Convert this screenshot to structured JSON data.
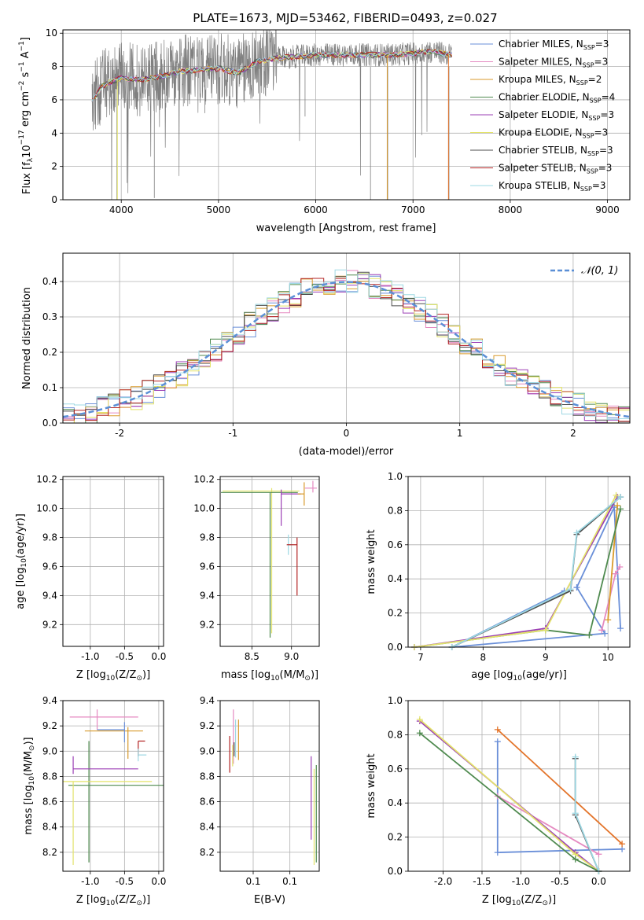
{
  "chart_data": [
    {
      "type": "line",
      "title": "PLATE=1673, MJD=53462, FIBERID=0493, z=0.027",
      "xlabel": "wavelength [Angstrom, rest frame]",
      "ylabel_parts": [
        "Flux [f",
        "λ",
        "10",
        "−17",
        " erg cm",
        "−2",
        " s",
        "−1",
        " A",
        "−1",
        "]"
      ],
      "xlim": [
        3400,
        9230
      ],
      "ylim": [
        0,
        10.2
      ],
      "xticks": [
        4000,
        5000,
        6000,
        7000,
        8000,
        9000
      ],
      "yticks": [
        0,
        2,
        4,
        6,
        8,
        10
      ],
      "legend_position": "right",
      "series": [
        {
          "label": "Chabrier MILES, N",
          "sub": "SSP",
          "count": "=3",
          "color": "#6a8fd8"
        },
        {
          "label": "Salpeter MILES, N",
          "sub": "SSP",
          "count": "=3",
          "color": "#e58ac1"
        },
        {
          "label": "Kroupa MILES, N",
          "sub": "SSP",
          "count": "=2",
          "color": "#d89a2b"
        },
        {
          "label": "Chabrier ELODIE, N",
          "sub": "SSP",
          "count": "=4",
          "color": "#4f8a4f"
        },
        {
          "label": "Salpeter ELODIE, N",
          "sub": "SSP",
          "count": "=3",
          "color": "#9b3fb5"
        },
        {
          "label": "Kroupa ELODIE, N",
          "sub": "SSP",
          "count": "=3",
          "color": "#e3e36a"
        },
        {
          "label": "Chabrier STELIB, N",
          "sub": "SSP",
          "count": "=3",
          "color": "#4d4d4d"
        },
        {
          "label": "Salpeter STELIB, N",
          "sub": "SSP",
          "count": "=3",
          "color": "#b22222"
        },
        {
          "label": "Kroupa STELIB, N",
          "sub": "SSP",
          "count": "=3",
          "color": "#9ed8e3"
        }
      ],
      "data_color": "#808080",
      "model_continuum": [
        [
          3700,
          5.9
        ],
        [
          3800,
          6.8
        ],
        [
          3900,
          7.1
        ],
        [
          4000,
          7.3
        ],
        [
          4200,
          7.2
        ],
        [
          4400,
          7.4
        ],
        [
          4600,
          7.7
        ],
        [
          4800,
          7.8
        ],
        [
          5000,
          7.9
        ],
        [
          5200,
          7.6
        ],
        [
          5400,
          8.3
        ],
        [
          5600,
          8.5
        ],
        [
          5800,
          8.6
        ],
        [
          6000,
          8.7
        ],
        [
          6200,
          8.7
        ],
        [
          6400,
          8.7
        ],
        [
          6600,
          8.7
        ],
        [
          6800,
          8.7
        ],
        [
          7000,
          8.8
        ],
        [
          7200,
          8.9
        ],
        [
          7400,
          8.7
        ]
      ]
    },
    {
      "type": "histogram",
      "xlabel": "(data-model)/error",
      "ylabel": "Normed distribution",
      "xlim": [
        -2.5,
        2.5
      ],
      "ylim": [
        0,
        0.48
      ],
      "xticks": [
        -2,
        -1,
        0,
        1,
        2
      ],
      "yticks": [
        0.0,
        0.1,
        0.2,
        0.3,
        0.4
      ],
      "legend": "𝒩(0, 1)",
      "legend_position": "top-right",
      "gaussian_color": "#5b8fd6"
    },
    {
      "type": "scatter",
      "xlabel_parts": [
        "Z [log",
        "10",
        "(Z/Z",
        "⊙",
        ")]"
      ],
      "ylabel_parts": [
        "age  [log",
        "10",
        "(age/yr)]"
      ],
      "xlim": [
        -1.4,
        0.07
      ],
      "ylim": [
        9.05,
        10.22
      ],
      "xticks": [
        -1.0,
        -0.5,
        0.0
      ],
      "yticks": [
        9.2,
        9.4,
        9.6,
        9.8,
        10.0,
        10.2
      ],
      "points": [
        {
          "x": -1.02,
          "y": 10.11,
          "xerr": [
            0.15,
            1.05
          ],
          "yerr": [
            1.0,
            0.0
          ],
          "color": "#4f8a4f"
        },
        {
          "x": -1.25,
          "y": 10.12,
          "xerr": [
            0.05,
            1.05
          ],
          "yerr": [
            0.98,
            0.02
          ],
          "color": "#e3e36a"
        },
        {
          "x": -0.48,
          "y": 10.14,
          "xerr": [
            0.75,
            0.27
          ],
          "yerr": [
            0.03,
            0.05
          ],
          "color": "#e58ac1"
        },
        {
          "x": -0.45,
          "y": 10.1,
          "xerr": [
            0.67,
            0.0
          ],
          "yerr": [
            0.05,
            0.05
          ],
          "color": "#d89a2b"
        },
        {
          "x": -0.45,
          "y": 10.1,
          "xerr": [
            0.55,
            0.1
          ],
          "yerr": [
            0.0,
            0.03
          ],
          "color": "#9b3fb5"
        },
        {
          "x": -0.33,
          "y": 9.75,
          "xerr": [
            0.0,
            0.08
          ],
          "yerr": [
            0.05,
            0.07
          ],
          "color": "#9ed8e3"
        },
        {
          "x": -0.31,
          "y": 9.78,
          "xerr": [
            0.0,
            0.0
          ],
          "yerr": [
            0.39,
            0.03
          ],
          "color": "#b22222"
        },
        {
          "x": -0.31,
          "y": 9.78,
          "xerr": [
            0.0,
            0.0
          ],
          "yerr": [
            0.08,
            0.04
          ],
          "color": "#4d4d4d"
        }
      ]
    },
    {
      "type": "scatter",
      "xlabel_parts": [
        "mass [log",
        "10",
        "(M/M",
        "⊙",
        ")]"
      ],
      "xlim": [
        8.1,
        9.35
      ],
      "ylim": [
        9.05,
        10.22
      ],
      "xticks": [
        8.5,
        9.0
      ],
      "yticks": [
        9.2,
        9.4,
        9.6,
        9.8,
        10.0,
        10.2
      ],
      "points": [
        {
          "x": 8.75,
          "y": 10.12,
          "xerr": [
            0.62,
            0.35
          ],
          "yerr": [
            0.98,
            0.02
          ],
          "color": "#e3e36a"
        },
        {
          "x": 8.73,
          "y": 10.11,
          "xerr": [
            0.62,
            0.35
          ],
          "yerr": [
            1.0,
            0.0
          ],
          "color": "#4f8a4f"
        },
        {
          "x": 8.87,
          "y": 10.1,
          "xerr": [
            0.0,
            0.25
          ],
          "yerr": [
            0.22,
            0.03
          ],
          "color": "#9b3fb5"
        },
        {
          "x": 9.27,
          "y": 10.14,
          "xerr": [
            0.1,
            0.05
          ],
          "yerr": [
            0.03,
            0.05
          ],
          "color": "#e58ac1"
        },
        {
          "x": 9.16,
          "y": 10.1,
          "xerr": [
            0.08,
            0.0
          ],
          "yerr": [
            0.08,
            0.08
          ],
          "color": "#d89a2b"
        },
        {
          "x": 8.96,
          "y": 9.75,
          "xerr": [
            0.0,
            0.05
          ],
          "yerr": [
            0.07,
            0.07
          ],
          "color": "#9ed8e3"
        },
        {
          "x": 9.07,
          "y": 9.75,
          "xerr": [
            0.13,
            0.0
          ],
          "yerr": [
            0.35,
            0.05
          ],
          "color": "#b22222"
        }
      ]
    },
    {
      "type": "line",
      "xlabel_parts": [
        "age  [log",
        "10",
        "(age/yr)]"
      ],
      "ylabel": "mass weight",
      "xlim": [
        6.8,
        10.35
      ],
      "ylim": [
        0,
        1.0
      ],
      "xticks": [
        7,
        8,
        9,
        10
      ],
      "yticks": [
        0.0,
        0.2,
        0.4,
        0.6,
        0.8,
        1.0
      ],
      "series": [
        {
          "color": "#6a8fd8",
          "x": [
            10.2,
            10.1,
            9.5,
            9.95,
            7.5,
            9.3
          ],
          "y": [
            0.11,
            0.82,
            0.35,
            0.08,
            0.0,
            0.33
          ]
        },
        {
          "color": "#e58ac1",
          "x": [
            10.19,
            10.12,
            9.9
          ],
          "y": [
            0.47,
            0.43,
            0.1
          ]
        },
        {
          "color": "#d89a2b",
          "x": [
            10.15,
            10.0
          ],
          "y": [
            0.83,
            0.16
          ]
        },
        {
          "color": "#4f8a4f",
          "x": [
            10.2,
            9.7,
            9.0,
            6.9
          ],
          "y": [
            0.81,
            0.07,
            0.1,
            0.0
          ]
        },
        {
          "color": "#9b3fb5",
          "x": [
            10.15,
            9.0,
            6.9
          ],
          "y": [
            0.88,
            0.11,
            0.0
          ]
        },
        {
          "color": "#e3e36a",
          "x": [
            10.13,
            9.0,
            6.9
          ],
          "y": [
            0.89,
            0.1,
            0.0
          ]
        },
        {
          "color": "#4d4d4d",
          "x": [
            10.2,
            9.5,
            9.4,
            7.5
          ],
          "y": [
            0.88,
            0.66,
            0.33,
            0.0
          ]
        },
        {
          "color": "#9ed8e3",
          "x": [
            10.2,
            9.5,
            9.4,
            7.5
          ],
          "y": [
            0.88,
            0.67,
            0.34,
            0.0
          ]
        }
      ]
    },
    {
      "type": "scatter",
      "xlabel_parts": [
        "Z [log",
        "10",
        "(Z/Z",
        "⊙",
        ")]"
      ],
      "ylabel_parts": [
        "mass [log",
        "10",
        "(M/M",
        "⊙",
        ")]"
      ],
      "xlim": [
        -1.4,
        0.07
      ],
      "ylim": [
        8.05,
        9.4
      ],
      "xticks": [
        -1.0,
        -0.5,
        0.0
      ],
      "yticks": [
        8.2,
        8.4,
        8.6,
        8.8,
        9.0,
        9.2,
        9.4
      ],
      "points": [
        {
          "x": -1.02,
          "y": 8.73,
          "xerr": [
            0.3,
            1.3
          ],
          "yerr": [
            0.61,
            0.35
          ],
          "color": "#4f8a4f"
        },
        {
          "x": -1.25,
          "y": 8.76,
          "xerr": [
            0.2,
            1.15
          ],
          "yerr": [
            0.66,
            0.0
          ],
          "color": "#e3e36a"
        },
        {
          "x": -1.25,
          "y": 8.86,
          "xerr": [
            0.0,
            0.95
          ],
          "yerr": [
            0.04,
            0.1
          ],
          "color": "#9b3fb5"
        },
        {
          "x": -0.9,
          "y": 9.27,
          "xerr": [
            0.4,
            0.6
          ],
          "yerr": [
            0.1,
            0.06
          ],
          "color": "#e58ac1"
        },
        {
          "x": -0.45,
          "y": 9.16,
          "xerr": [
            0.63,
            0.22
          ],
          "yerr": [
            0.22,
            0.03
          ],
          "color": "#d89a2b"
        },
        {
          "x": -0.5,
          "y": 9.17,
          "xerr": [
            0.4,
            0.0
          ],
          "yerr": [
            0.1,
            0.06
          ],
          "color": "#6a8fd8"
        },
        {
          "x": -0.3,
          "y": 9.08,
          "xerr": [
            0.0,
            0.1
          ],
          "yerr": [
            0.12,
            0.0
          ],
          "color": "#b22222"
        },
        {
          "x": -0.3,
          "y": 8.97,
          "xerr": [
            0.0,
            0.12
          ],
          "yerr": [
            0.05,
            0.05
          ],
          "color": "#9ed8e3"
        }
      ]
    },
    {
      "type": "scatter",
      "xlabel": "E(B-V)",
      "xlim": [
        0.055,
        0.19
      ],
      "ylim": [
        8.05,
        9.4
      ],
      "xticks": [
        0.1,
        0.15
      ],
      "yticks": [
        8.2,
        8.4,
        8.6,
        8.8,
        9.0,
        9.2,
        9.4
      ],
      "vlines": [
        {
          "x": 0.068,
          "y1": 8.83,
          "y2": 9.12,
          "color": "#b22222"
        },
        {
          "x": 0.073,
          "y1": 8.9,
          "y2": 9.33,
          "color": "#e58ac1"
        },
        {
          "x": 0.074,
          "y1": 8.96,
          "y2": 9.07,
          "color": "#4d4d4d"
        },
        {
          "x": 0.076,
          "y1": 8.95,
          "y2": 9.25,
          "color": "#9ed8e3"
        },
        {
          "x": 0.08,
          "y1": 8.93,
          "y2": 9.25,
          "color": "#d89a2b"
        },
        {
          "x": 0.072,
          "y1": 8.88,
          "y2": 9.05,
          "color": "#e3e36a"
        },
        {
          "x": 0.179,
          "y1": 8.3,
          "y2": 8.96,
          "color": "#9b3fb5"
        },
        {
          "x": 0.183,
          "y1": 8.1,
          "y2": 8.86,
          "color": "#e3e36a"
        },
        {
          "x": 0.186,
          "y1": 8.12,
          "y2": 8.89,
          "color": "#4f8a4f"
        }
      ]
    },
    {
      "type": "line",
      "xlabel_parts": [
        "Z [log",
        "10",
        "(Z/Z",
        "⊙",
        ")]"
      ],
      "ylabel": "mass weight",
      "xlim": [
        -2.45,
        0.4
      ],
      "ylim": [
        0,
        1.0
      ],
      "xticks": [
        -2.0,
        -1.5,
        -1.0,
        -0.5,
        0.0
      ],
      "yticks": [
        0.0,
        0.2,
        0.4,
        0.6,
        0.8,
        1.0
      ],
      "series": [
        {
          "color": "#6a8fd8",
          "x": [
            -1.3,
            -1.3,
            0.3
          ],
          "y": [
            0.76,
            0.11,
            0.13
          ]
        },
        {
          "color": "#e58ac1",
          "x": [
            -1.3,
            0.0
          ],
          "y": [
            0.44,
            0.1
          ]
        },
        {
          "color": "#e3742a",
          "x": [
            -1.3,
            0.3
          ],
          "y": [
            0.83,
            0.16
          ]
        },
        {
          "color": "#9b3fb5",
          "x": [
            -2.3,
            -0.3,
            0.0
          ],
          "y": [
            0.88,
            0.11,
            0.0
          ]
        },
        {
          "color": "#e3e36a",
          "x": [
            -2.3,
            -0.3,
            0.0
          ],
          "y": [
            0.89,
            0.1,
            0.0
          ]
        },
        {
          "color": "#4f8a4f",
          "x": [
            -2.3,
            -0.3,
            0.0
          ],
          "y": [
            0.81,
            0.07,
            0.0
          ]
        },
        {
          "color": "#4d4d4d",
          "x": [
            -0.3,
            -0.3,
            0.0
          ],
          "y": [
            0.66,
            0.33,
            0.0
          ]
        },
        {
          "color": "#9ed8e3",
          "x": [
            -0.3,
            -0.3,
            0.0
          ],
          "y": [
            0.67,
            0.34,
            0.0
          ]
        }
      ]
    }
  ]
}
